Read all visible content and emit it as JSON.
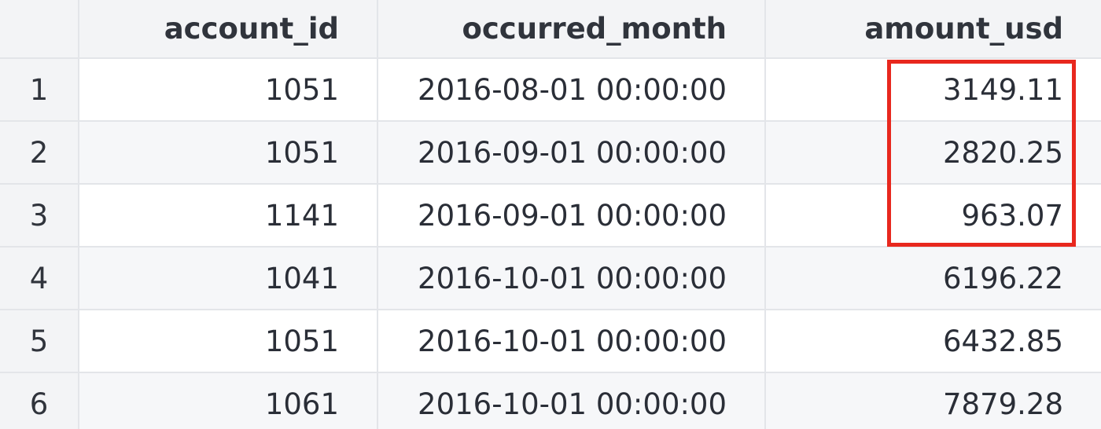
{
  "table": {
    "columns": [
      "",
      "account_id",
      "occurred_month",
      "amount_usd"
    ],
    "rows": [
      {
        "index": "1",
        "account_id": "1051",
        "occurred_month": "2016-08-01 00:00:00",
        "amount_usd": "3149.11"
      },
      {
        "index": "2",
        "account_id": "1051",
        "occurred_month": "2016-09-01 00:00:00",
        "amount_usd": "2820.25"
      },
      {
        "index": "3",
        "account_id": "1141",
        "occurred_month": "2016-09-01 00:00:00",
        "amount_usd": "963.07"
      },
      {
        "index": "4",
        "account_id": "1041",
        "occurred_month": "2016-10-01 00:00:00",
        "amount_usd": "6196.22"
      },
      {
        "index": "5",
        "account_id": "1051",
        "occurred_month": "2016-10-01 00:00:00",
        "amount_usd": "6432.85"
      },
      {
        "index": "6",
        "account_id": "1061",
        "occurred_month": "2016-10-01 00:00:00",
        "amount_usd": "7879.28"
      }
    ]
  },
  "colors": {
    "highlight": "#e8281e",
    "header_bg": "#f3f4f6",
    "grid_line": "#e3e5e9"
  }
}
